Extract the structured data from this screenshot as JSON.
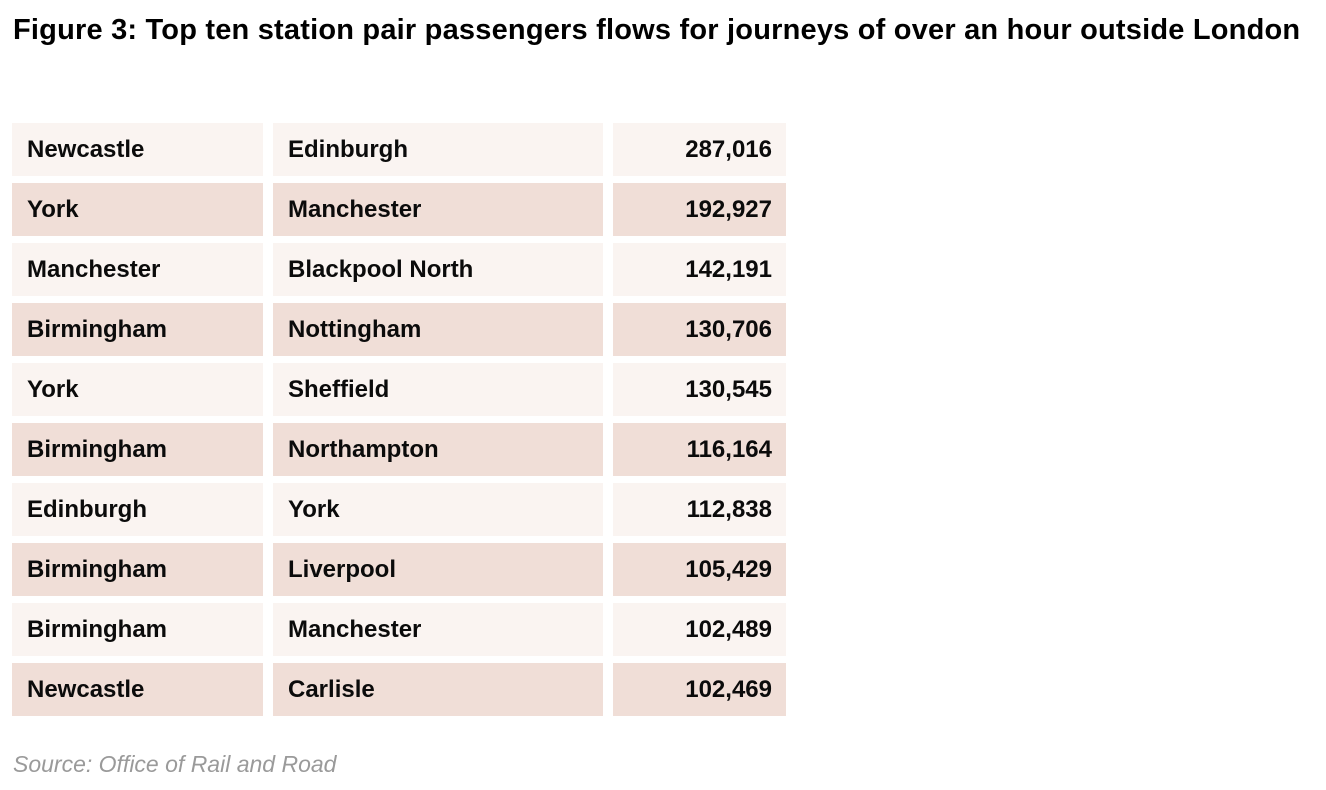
{
  "title": "Figure 3: Top ten station pair passengers flows for journeys of over an hour outside London",
  "source_note": "Source: Office of Rail and Road",
  "table": {
    "rows": [
      {
        "from": "Newcastle",
        "to": "Edinburgh",
        "value": "287,016"
      },
      {
        "from": "York",
        "to": "Manchester",
        "value": "192,927"
      },
      {
        "from": "Manchester",
        "to": "Blackpool North",
        "value": "142,191"
      },
      {
        "from": "Birmingham",
        "to": "Nottingham",
        "value": "130,706"
      },
      {
        "from": "York",
        "to": "Sheffield",
        "value": "130,545"
      },
      {
        "from": "Birmingham",
        "to": "Northampton",
        "value": "116,164"
      },
      {
        "from": "Edinburgh",
        "to": "York",
        "value": "112,838"
      },
      {
        "from": "Birmingham",
        "to": "Liverpool",
        "value": "105,429"
      },
      {
        "from": "Birmingham",
        "to": "Manchester",
        "value": "102,489"
      },
      {
        "from": "Newcastle",
        "to": "Carlisle",
        "value": "102,469"
      }
    ]
  },
  "colors": {
    "title_text": "#000000",
    "cell_text": "#0b0b0b",
    "row_light": "#faf4f1",
    "row_shaded": "#f0ded7",
    "source_text": "#9a9a9a"
  },
  "chart_data": {
    "type": "table",
    "title": "Figure 3: Top ten station pair passengers flows for journeys of over an hour outside London",
    "rows": [
      [
        "Newcastle",
        "Edinburgh",
        287016
      ],
      [
        "York",
        "Manchester",
        192927
      ],
      [
        "Manchester",
        "Blackpool North",
        142191
      ],
      [
        "Birmingham",
        "Nottingham",
        130706
      ],
      [
        "York",
        "Sheffield",
        130545
      ],
      [
        "Birmingham",
        "Northampton",
        116164
      ],
      [
        "Edinburgh",
        "York",
        112838
      ],
      [
        "Birmingham",
        "Liverpool",
        105429
      ],
      [
        "Birmingham",
        "Manchester",
        102489
      ],
      [
        "Newcastle",
        "Carlisle",
        102469
      ]
    ],
    "annotations": [
      "Source: Office of Rail and Road"
    ],
    "layout": {
      "row_striping": true,
      "value_alignment": "right",
      "grid": false
    }
  }
}
